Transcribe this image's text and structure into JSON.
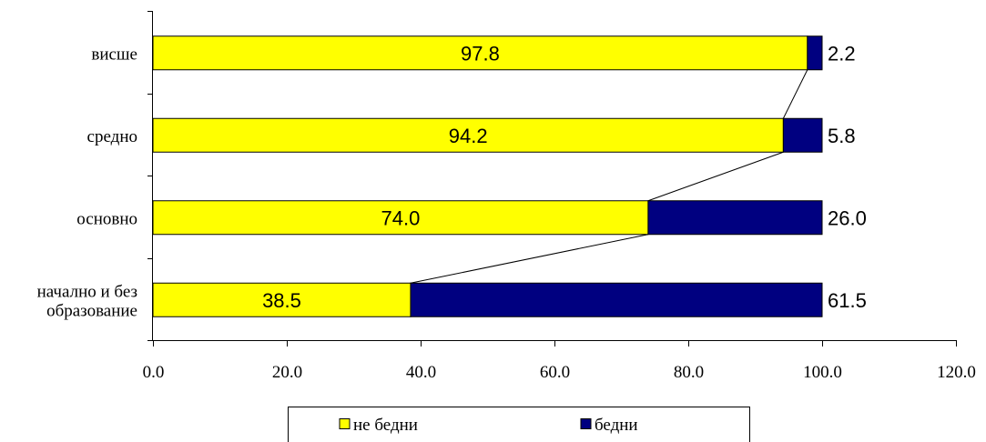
{
  "chart_data": {
    "type": "bar",
    "orientation": "horizontal",
    "stacked": true,
    "categories": [
      "висше",
      "средно",
      "основно",
      "начално и без образование"
    ],
    "category_lines": [
      [
        "висше"
      ],
      [
        "средно"
      ],
      [
        "основно"
      ],
      [
        "начално и без",
        "образование"
      ]
    ],
    "series": [
      {
        "name": "не бедни",
        "values": [
          97.8,
          94.2,
          74.0,
          38.5
        ],
        "labels": [
          "97.8",
          "94.2",
          "74.0",
          "38.5"
        ],
        "color": "#ffff00"
      },
      {
        "name": "бедни",
        "values": [
          2.2,
          5.8,
          26.0,
          61.5
        ],
        "labels": [
          "2.2",
          "5.8",
          "26.0",
          "61.5"
        ],
        "color": "#000080"
      }
    ],
    "xlim": [
      0,
      120
    ],
    "xticks": [
      "0.0",
      "20.0",
      "40.0",
      "60.0",
      "80.0",
      "100.0",
      "120.0"
    ],
    "series_lines": true,
    "grid": false,
    "legend": "bottom"
  }
}
